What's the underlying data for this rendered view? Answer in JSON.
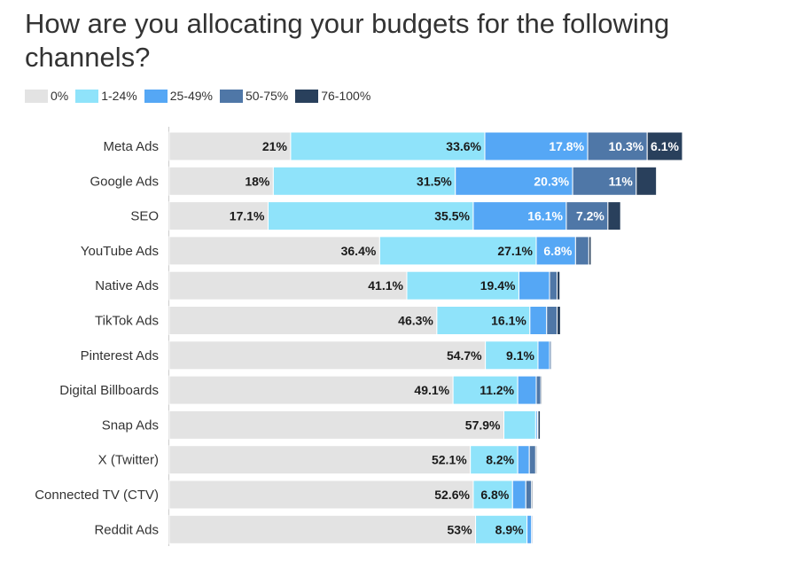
{
  "title": "How are you allocating your budgets for the following channels?",
  "legend": [
    {
      "label": "0%",
      "color": "#e3e3e3"
    },
    {
      "label": "1-24%",
      "color": "#8fe3fa"
    },
    {
      "label": "25-49%",
      "color": "#55a7f5"
    },
    {
      "label": "50-75%",
      "color": "#4f77a7"
    },
    {
      "label": "76-100%",
      "color": "#29405c"
    }
  ],
  "chart_data": {
    "type": "bar",
    "orientation": "horizontal",
    "stacked": true,
    "title": "How are you allocating your budgets for the following channels?",
    "legend_position": "top-left",
    "grid": false,
    "categories": [
      "Meta Ads",
      "Google Ads",
      "SEO",
      "YouTube Ads",
      "Native Ads",
      "TikTok Ads",
      "Pinterest Ads",
      "Digital Billboards",
      "Snap Ads",
      "X (Twitter)",
      "Connected TV (CTV)",
      "Reddit Ads"
    ],
    "series": [
      {
        "name": "0%",
        "color": "#e3e3e3",
        "values": [
          21,
          18,
          17.1,
          36.4,
          41.1,
          46.3,
          54.7,
          49.1,
          57.9,
          52.1,
          52.6,
          53
        ]
      },
      {
        "name": "1-24%",
        "color": "#8fe3fa",
        "values": [
          33.6,
          31.5,
          35.5,
          27.1,
          19.4,
          16.1,
          9.1,
          11.2,
          5.5,
          8.2,
          6.8,
          8.9
        ]
      },
      {
        "name": "25-49%",
        "color": "#55a7f5",
        "values": [
          17.8,
          20.3,
          16.1,
          6.8,
          5.3,
          2.9,
          2.0,
          3.2,
          0.3,
          2.0,
          2.3,
          0.8
        ]
      },
      {
        "name": "50-75%",
        "color": "#4f77a7",
        "values": [
          10.3,
          11,
          7.2,
          2.3,
          1.3,
          1.8,
          0.3,
          0.8,
          0.1,
          1.1,
          1.0,
          0.2
        ]
      },
      {
        "name": "76-100%",
        "color": "#29405c",
        "values": [
          6.1,
          3.5,
          2.2,
          0.4,
          0.5,
          0.6,
          0.1,
          0.2,
          0.4,
          0.2,
          0.2,
          0.1
        ]
      }
    ],
    "labels": [
      [
        "21%",
        "33.6%",
        "17.8%",
        "10.3%",
        "6.1%"
      ],
      [
        "18%",
        "31.5%",
        "20.3%",
        "11%",
        ""
      ],
      [
        "17.1%",
        "35.5%",
        "16.1%",
        "7.2%",
        ""
      ],
      [
        "36.4%",
        "27.1%",
        "6.8%",
        "",
        ""
      ],
      [
        "41.1%",
        "19.4%",
        "",
        "",
        ""
      ],
      [
        "46.3%",
        "16.1%",
        "",
        "",
        ""
      ],
      [
        "54.7%",
        "9.1%",
        "",
        "",
        ""
      ],
      [
        "49.1%",
        "11.2%",
        "",
        "",
        ""
      ],
      [
        "57.9%",
        "",
        "",
        "",
        ""
      ],
      [
        "52.1%",
        "8.2%",
        "",
        "",
        ""
      ],
      [
        "52.6%",
        "6.8%",
        "",
        "",
        ""
      ],
      [
        "53%",
        "8.9%",
        "",
        "",
        ""
      ]
    ],
    "label_colors": [
      "#1a1a1a",
      "#1a1a1a",
      "#ffffff",
      "#ffffff",
      "#ffffff"
    ]
  }
}
